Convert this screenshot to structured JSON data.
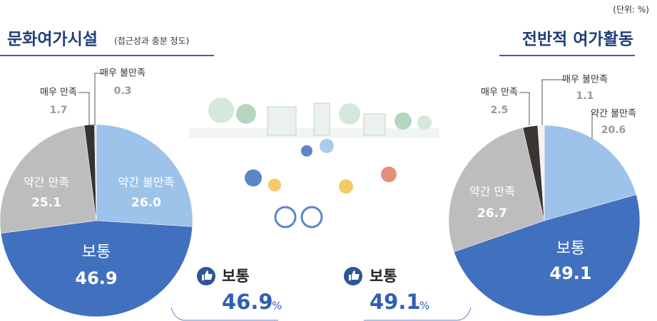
{
  "unit_note": "(단위: %)",
  "chart_data": [
    {
      "type": "pie",
      "title": "문화여가시설",
      "subtitle": "(접근성과 충분 정도)",
      "categories": [
        "약간 불만족",
        "보통",
        "약간 만족",
        "매우 만족",
        "매우 불만족"
      ],
      "values": [
        26.0,
        46.9,
        25.1,
        1.7,
        0.3
      ],
      "value_labels": [
        "26.0",
        "46.9",
        "25.1",
        "1.7",
        "0.3"
      ],
      "colors": [
        "#9dc3ea",
        "#4170bf",
        "#bdbdbd",
        "#333333",
        "#e4e4e4"
      ]
    },
    {
      "type": "pie",
      "title": "전반적 여가활동",
      "categories": [
        "약간 불만족",
        "보통",
        "약간 만족",
        "매우 만족",
        "매우 불만족"
      ],
      "values": [
        20.6,
        49.1,
        26.7,
        2.5,
        1.1
      ],
      "value_labels": [
        "20.6",
        "49.1",
        "26.7",
        "2.5",
        "1.1"
      ],
      "colors": [
        "#9dc3ea",
        "#4170bf",
        "#bdbdbd",
        "#3a3533",
        "#f2f2f2"
      ]
    }
  ],
  "highlights": [
    {
      "label": "보통",
      "value": 46.9,
      "unit": "%"
    },
    {
      "label": "보통",
      "value": 49.1,
      "unit": "%"
    }
  ]
}
